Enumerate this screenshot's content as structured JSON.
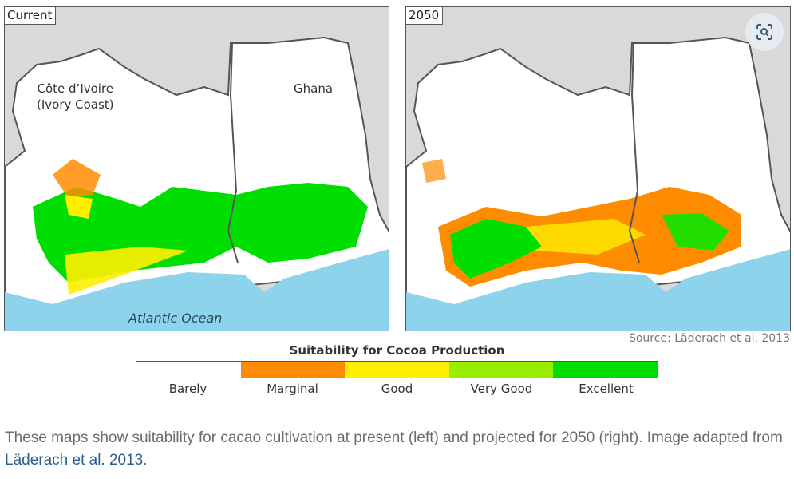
{
  "maps": [
    {
      "label": "Current",
      "countries": [
        "Côte d’Ivoire\n(Ivory Coast)",
        "Ghana"
      ],
      "ocean": "Atlantic Ocean"
    },
    {
      "label": "2050"
    }
  ],
  "source": "Source: Läderach et al. 2013",
  "legend": {
    "title": "Suitability for Cocoa Production",
    "classes": [
      {
        "label": "Barely",
        "color": "#ffffff"
      },
      {
        "label": "Marginal",
        "color": "#ff8c00"
      },
      {
        "label": "Good",
        "color": "#ffee00"
      },
      {
        "label": "Very Good",
        "color": "#99ee00"
      },
      {
        "label": "Excellent",
        "color": "#00dd00"
      }
    ]
  },
  "caption": {
    "text": "These maps show suitability for cacao cultivation at present (left) and projected for 2050 (right). Image adapted from ",
    "link": "Läderach et al. 2013",
    "end": "."
  },
  "colors": {
    "ocean": "#8dd3ec",
    "neighbors": "#d9d9d9",
    "link": "#2b5c8f"
  },
  "icons": {
    "lens": "visual-search-icon"
  }
}
